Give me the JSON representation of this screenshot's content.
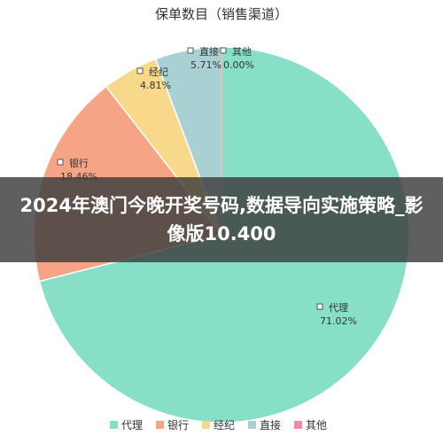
{
  "chart_data": {
    "type": "pie",
    "title": "保单数目（销售渠道）",
    "slices": [
      {
        "name": "代理",
        "value": 71.02,
        "label": "71.02%",
        "color": "#88dfc8"
      },
      {
        "name": "银行",
        "value": 18.46,
        "label": "18.46%",
        "color": "#f5a585"
      },
      {
        "name": "经纪",
        "value": 4.81,
        "label": "4.81%",
        "color": "#f8d88a"
      },
      {
        "name": "直接",
        "value": 5.71,
        "label": "5.71%",
        "color": "#a9d0d3"
      },
      {
        "name": "其他",
        "value": 0.0,
        "label": "0.00%",
        "color": "#f28aa0"
      }
    ],
    "legend": {
      "placement": "bottom",
      "items": [
        "代理",
        "银行",
        "经纪",
        "直接",
        "其他"
      ]
    }
  },
  "overlay": {
    "text": "2024年澳门今晚开奖号码,数据导向实施策略_影像版10.400"
  }
}
